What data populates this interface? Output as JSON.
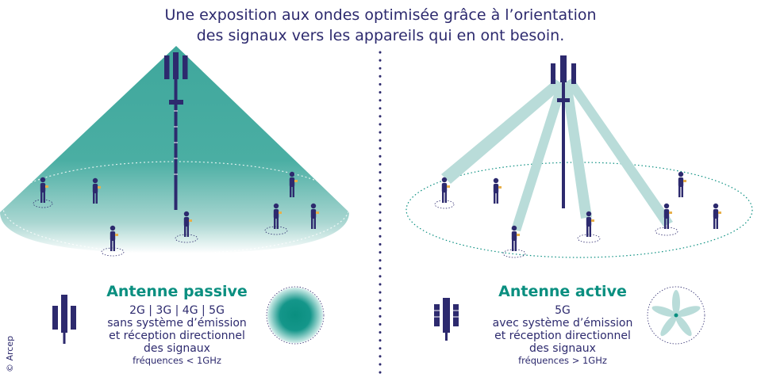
{
  "title": {
    "line1": "Une exposition aux ondes optimisée grâce à l’orientation",
    "line2": "des signaux vers les appareils qui en ont besoin."
  },
  "passive": {
    "heading": "Antenne passive",
    "bands": "2G | 3G | 4G | 5G",
    "desc1": "sans système d’émission",
    "desc2": "et réception directionnel",
    "desc3": "des signaux",
    "freq": "fréquences < 1GHz"
  },
  "active": {
    "heading": "Antenne active",
    "bands": "5G",
    "desc1": "avec système d’émission",
    "desc2": "et réception directionnel",
    "desc3": "des signaux",
    "freq": "fréquences > 1GHz"
  },
  "copyright": "© Arcep",
  "colors": {
    "navy": "#2d2a6e",
    "teal": "#0a8f80",
    "teal_cone": "#3aa89c",
    "beam": "#b9dcd9"
  }
}
